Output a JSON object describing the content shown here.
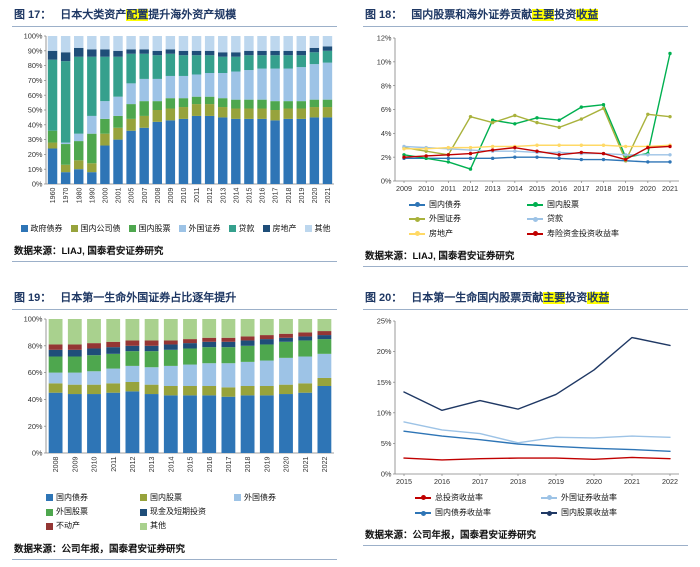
{
  "style": {
    "title_color": "#1F3864",
    "highlight_color": "#FFFF00",
    "rule_color": "#9CB0C9",
    "axis_color": "#808080"
  },
  "panels": [
    {
      "fig": "图 17：",
      "title_parts": [
        {
          "t": "日本大类资产",
          "hl": false
        },
        {
          "t": "配置",
          "hl": true
        },
        {
          "t": "提升海外资产规模",
          "hl": false
        }
      ],
      "source": "数据来源：LIAJ, 国泰君安证券研究"
    },
    {
      "fig": "图 18：",
      "title_parts": [
        {
          "t": "国内股票和海外证券贡献",
          "hl": false
        },
        {
          "t": "主要",
          "hl": true
        },
        {
          "t": "投资",
          "hl": false
        },
        {
          "t": "收益",
          "hl": true
        }
      ],
      "source": "数据来源：LIAJ, 国泰君安证券研究"
    },
    {
      "fig": "图 19：",
      "title_parts": [
        {
          "t": "日本第一生命外国证券占比逐年提升",
          "hl": false
        }
      ],
      "source": "数据来源：公司年报，国泰君安证券研究"
    },
    {
      "fig": "图 20：",
      "title_parts": [
        {
          "t": "日本第一生命国内股票贡献",
          "hl": false
        },
        {
          "t": "主要",
          "hl": true
        },
        {
          "t": "投资",
          "hl": false
        },
        {
          "t": "收益",
          "hl": true
        }
      ],
      "source": "数据来源：公司年报，国泰君安证券研究"
    }
  ],
  "chart_data": [
    {
      "type": "bar",
      "stacked": true,
      "percent": true,
      "title": "日本大类资产配置提升海外资产规模",
      "categories": [
        "1960",
        "1970",
        "1980",
        "1990",
        "2000",
        "2001",
        "2005",
        "2007",
        "2008",
        "2009",
        "2010",
        "2011",
        "2012",
        "2013",
        "2014",
        "2015",
        "2016",
        "2017",
        "2018",
        "2019",
        "2020",
        "2021"
      ],
      "series": [
        {
          "name": "政府债券",
          "color": "#2E75B6",
          "values": [
            24,
            8,
            10,
            8,
            26,
            30,
            36,
            38,
            42,
            43,
            44,
            46,
            46,
            45,
            44,
            44,
            44,
            43,
            44,
            44,
            45,
            45
          ]
        },
        {
          "name": "国内公司债",
          "color": "#97A33C",
          "values": [
            4,
            5,
            6,
            6,
            8,
            8,
            8,
            8,
            8,
            8,
            8,
            8,
            8,
            7,
            7,
            7,
            7,
            7,
            7,
            7,
            7,
            7
          ]
        },
        {
          "name": "国内股票",
          "color": "#4EA74E",
          "values": [
            8,
            14,
            13,
            20,
            10,
            8,
            10,
            10,
            6,
            7,
            6,
            5,
            5,
            6,
            6,
            6,
            6,
            6,
            5,
            5,
            5,
            5
          ]
        },
        {
          "name": "外国证券",
          "color": "#9DC3E6",
          "values": [
            0,
            1,
            5,
            12,
            12,
            13,
            14,
            15,
            15,
            15,
            15,
            15,
            16,
            17,
            19,
            20,
            21,
            22,
            22,
            23,
            24,
            25
          ]
        },
        {
          "name": "贷款",
          "color": "#35A08D",
          "values": [
            48,
            55,
            52,
            40,
            30,
            27,
            20,
            17,
            16,
            15,
            14,
            13,
            12,
            11,
            10,
            10,
            9,
            9,
            9,
            8,
            8,
            8
          ]
        },
        {
          "name": "房地产",
          "color": "#1F4E79",
          "values": [
            6,
            6,
            6,
            5,
            5,
            4,
            3,
            3,
            3,
            3,
            3,
            3,
            3,
            3,
            3,
            3,
            3,
            3,
            3,
            3,
            3,
            3
          ]
        },
        {
          "name": "其他",
          "color": "#BDD7EE",
          "values": [
            10,
            11,
            8,
            9,
            9,
            10,
            9,
            9,
            10,
            9,
            10,
            10,
            10,
            11,
            11,
            10,
            10,
            10,
            10,
            10,
            8,
            7
          ]
        }
      ],
      "ylim": [
        0,
        100
      ],
      "ytick": 10,
      "legend_position": "bottom"
    },
    {
      "type": "line",
      "title": "国内股票和海外证券贡献主要投资收益",
      "x": [
        "2009",
        "2010",
        "2011",
        "2012",
        "2013",
        "2014",
        "2015",
        "2016",
        "2017",
        "2018",
        "2019",
        "2020",
        "2021"
      ],
      "series": [
        {
          "name": "国内债券",
          "color": "#2E75B6",
          "values": [
            1.9,
            1.9,
            1.9,
            1.9,
            1.9,
            2.0,
            2.0,
            1.9,
            1.8,
            1.8,
            1.7,
            1.6,
            1.6
          ]
        },
        {
          "name": "国内股票",
          "color": "#00B050",
          "values": [
            2.2,
            1.9,
            1.6,
            1.0,
            5.1,
            4.8,
            5.3,
            5.1,
            6.2,
            6.4,
            2.0,
            2.3,
            10.7
          ]
        },
        {
          "name": "外国证券",
          "color": "#A9B23C",
          "values": [
            2.8,
            2.5,
            2.2,
            5.4,
            4.9,
            5.5,
            4.9,
            4.5,
            5.2,
            6.1,
            1.7,
            5.6,
            5.4
          ]
        },
        {
          "name": "贷款",
          "color": "#9DC3E6",
          "values": [
            2.9,
            2.8,
            2.7,
            2.6,
            2.5,
            2.5,
            2.4,
            2.4,
            2.3,
            2.3,
            2.2,
            2.2,
            2.2
          ]
        },
        {
          "name": "房地产",
          "color": "#FFD966",
          "values": [
            2.7,
            2.7,
            2.8,
            2.8,
            2.9,
            2.9,
            3.0,
            3.0,
            3.0,
            3.0,
            2.9,
            2.9,
            3.0
          ]
        },
        {
          "name": "寿险资金投资收益率",
          "color": "#C00000",
          "values": [
            2.0,
            2.1,
            2.2,
            2.3,
            2.6,
            2.8,
            2.5,
            2.2,
            2.4,
            2.3,
            1.8,
            2.8,
            2.9
          ]
        }
      ],
      "ylim": [
        0,
        12
      ],
      "ytick": 2,
      "markers": true,
      "legend_position": "bottom"
    },
    {
      "type": "bar",
      "stacked": true,
      "percent": true,
      "title": "日本第一生命外国证券占比逐年提升",
      "categories": [
        "2008",
        "2009",
        "2010",
        "2011",
        "2012",
        "2013",
        "2014",
        "2015",
        "2016",
        "2017",
        "2018",
        "2019",
        "2020",
        "2021",
        "2022"
      ],
      "series": [
        {
          "name": "国内债券",
          "color": "#2E75B6",
          "values": [
            45,
            44,
            44,
            45,
            46,
            44,
            43,
            43,
            43,
            42,
            43,
            43,
            44,
            45,
            50
          ]
        },
        {
          "name": "国内股票",
          "color": "#97A33C",
          "values": [
            7,
            7,
            7,
            7,
            7,
            7,
            7,
            7,
            7,
            7,
            7,
            7,
            7,
            7,
            6
          ]
        },
        {
          "name": "外国债券",
          "color": "#9DC3E6",
          "values": [
            8,
            9,
            10,
            11,
            12,
            13,
            15,
            16,
            17,
            18,
            18,
            19,
            20,
            20,
            18
          ]
        },
        {
          "name": "外国股票",
          "color": "#4EA74E",
          "values": [
            12,
            12,
            12,
            11,
            11,
            12,
            12,
            12,
            12,
            12,
            12,
            12,
            12,
            12,
            11
          ]
        },
        {
          "name": "现金及短期投资",
          "color": "#1F4E79",
          "values": [
            5,
            5,
            5,
            5,
            4,
            4,
            4,
            4,
            4,
            4,
            4,
            4,
            3,
            3,
            3
          ]
        },
        {
          "name": "不动产",
          "color": "#943634",
          "values": [
            4,
            4,
            4,
            4,
            4,
            4,
            3,
            3,
            3,
            3,
            3,
            3,
            3,
            3,
            3
          ]
        },
        {
          "name": "其他",
          "color": "#A9D18E",
          "values": [
            19,
            19,
            18,
            17,
            16,
            16,
            16,
            15,
            14,
            14,
            13,
            12,
            11,
            10,
            9
          ]
        }
      ],
      "ylim": [
        0,
        100
      ],
      "ytick": 20,
      "legend_position": "bottom"
    },
    {
      "type": "line",
      "title": "日本第一生命国内股票贡献主要投资收益",
      "x": [
        "2015",
        "2016",
        "2017",
        "2018",
        "2019",
        "2020",
        "2021",
        "2022"
      ],
      "series": [
        {
          "name": "总投资收益率",
          "color": "#C00000",
          "values": [
            2.6,
            2.3,
            2.5,
            2.6,
            2.6,
            2.4,
            2.7,
            2.5
          ]
        },
        {
          "name": "外国证券收益率",
          "color": "#9DC3E6",
          "values": [
            8.5,
            7.2,
            6.6,
            5.1,
            6.0,
            5.9,
            6.2,
            6.0
          ]
        },
        {
          "name": "国内债券收益率",
          "color": "#2E75B6",
          "values": [
            7.0,
            6.2,
            5.6,
            4.9,
            4.5,
            4.2,
            4.0,
            3.7
          ]
        },
        {
          "name": "国内股票收益率",
          "color": "#1F3864",
          "values": [
            13.4,
            10.4,
            12.0,
            10.6,
            13.0,
            17.0,
            22.3,
            21.0
          ]
        }
      ],
      "ylim": [
        0,
        25
      ],
      "ytick": 5,
      "markers": false,
      "legend_position": "bottom"
    }
  ]
}
